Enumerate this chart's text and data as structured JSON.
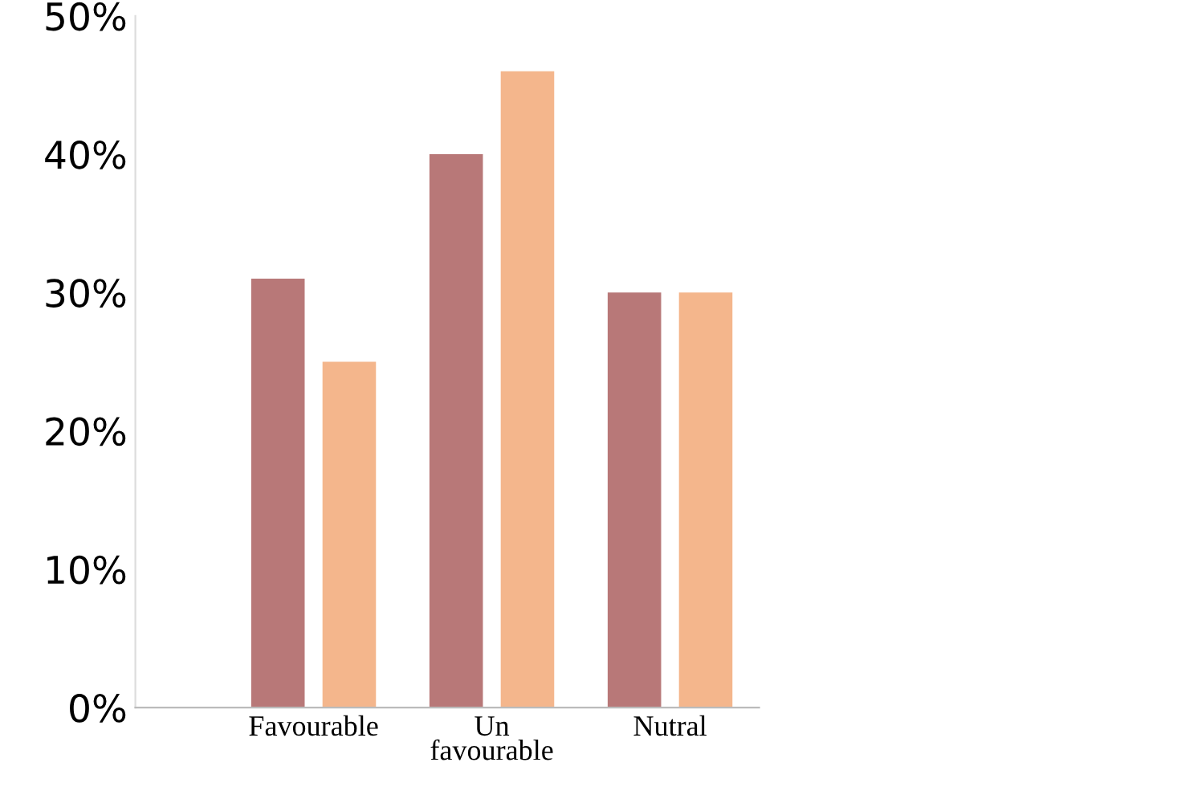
{
  "chart_data": {
    "type": "bar",
    "categories": [
      "Favourable",
      "Un\nfavourable",
      "Nutral"
    ],
    "series": [
      {
        "color": "#b87878",
        "values": [
          31,
          40,
          30
        ]
      },
      {
        "color": "#f4b68c",
        "values": [
          25,
          46,
          30
        ]
      }
    ],
    "ylim": [
      0,
      50
    ],
    "yticks": [
      {
        "value": 0,
        "label": "0%"
      },
      {
        "value": 10,
        "label": "10%"
      },
      {
        "value": 20,
        "label": "20%"
      },
      {
        "value": 30,
        "label": "30%"
      },
      {
        "value": 40,
        "label": "40%"
      },
      {
        "value": 50,
        "label": "50%"
      }
    ],
    "grid": false,
    "legend": false
  }
}
